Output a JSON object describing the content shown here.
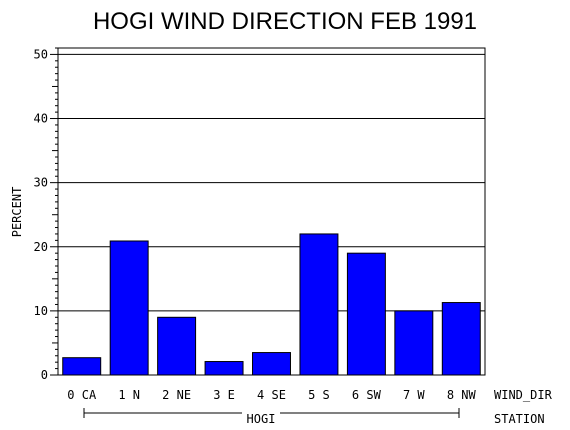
{
  "chart_data": {
    "type": "bar",
    "title": "HOGI WIND DIRECTION FEB 1991",
    "ylabel": "PERCENT",
    "xlabel": "WIND_DIR",
    "group_label": "STATION",
    "group_name": "HOGI",
    "categories": [
      "0 CA",
      "1 N",
      "2 NE",
      "3 E",
      "4 SE",
      "5 S",
      "6 SW",
      "7 W",
      "8 NW"
    ],
    "values": [
      2.7,
      20.9,
      9.0,
      2.1,
      3.5,
      22.0,
      19.0,
      10.0,
      11.3
    ],
    "ylim": [
      0,
      51
    ],
    "yticks": [
      0,
      10,
      20,
      30,
      40,
      50
    ],
    "grid": true,
    "bar_color": "#0000ff"
  }
}
